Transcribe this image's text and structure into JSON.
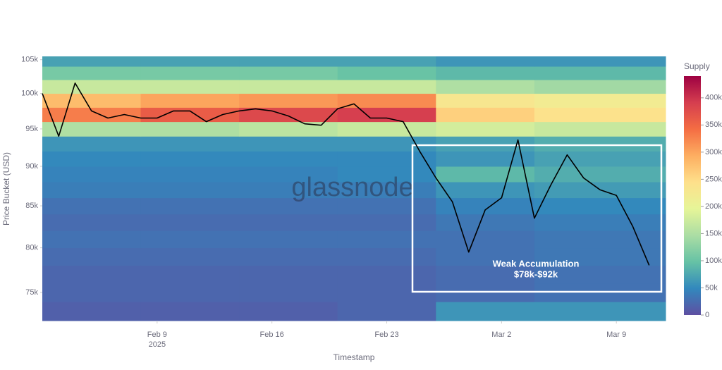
{
  "chart_data": {
    "type": "heatmap",
    "x_label": "Timestamp",
    "y_label": "Price Bucket (USD)",
    "watermark": "glassnode",
    "annotation": [
      "Weak Accumulation",
      "$78k-$92k"
    ],
    "xlim": [
      "2025-02-02",
      "2025-03-12"
    ],
    "xticks": [
      {
        "value": "2025-02-09",
        "label": "Feb 9"
      },
      {
        "value": "2025-02-16",
        "label": "Feb 16"
      },
      {
        "value": "2025-02-23",
        "label": "Feb 23"
      },
      {
        "value": "2025-03-02",
        "label": "Mar 2"
      },
      {
        "value": "2025-03-09",
        "label": "Mar 9"
      }
    ],
    "x_year_label": "2025",
    "ylim": [
      72000,
      105500
    ],
    "log_y": true,
    "yticks": [
      {
        "value": 75000,
        "label": "75k"
      },
      {
        "value": 80000,
        "label": "80k"
      },
      {
        "value": 85000,
        "label": "85k"
      },
      {
        "value": 90000,
        "label": "90k"
      },
      {
        "value": 95000,
        "label": "95k"
      },
      {
        "value": 100000,
        "label": "100k"
      },
      {
        "value": 105000,
        "label": "105k"
      }
    ],
    "heatmap": {
      "x": [
        "2025-02-02",
        "2025-02-08",
        "2025-02-14",
        "2025-02-20",
        "2025-02-26",
        "2025-03-04",
        "2025-03-12"
      ],
      "y": [
        72000,
        74000,
        76000,
        78000,
        80000,
        82000,
        84000,
        86000,
        88000,
        90000,
        92000,
        94000,
        96000,
        98000,
        100000,
        102000,
        104000,
        106000
      ],
      "z": [
        [
          15000,
          15000,
          15000,
          20000,
          60000,
          60000
        ],
        [
          20000,
          20000,
          20000,
          20000,
          25000,
          30000
        ],
        [
          20000,
          20000,
          20000,
          20000,
          25000,
          30000
        ],
        [
          25000,
          25000,
          25000,
          25000,
          30000,
          35000
        ],
        [
          30000,
          30000,
          30000,
          30000,
          30000,
          35000
        ],
        [
          25000,
          25000,
          25000,
          25000,
          35000,
          40000
        ],
        [
          30000,
          30000,
          30000,
          30000,
          45000,
          50000
        ],
        [
          40000,
          40000,
          40000,
          40000,
          60000,
          65000
        ],
        [
          45000,
          45000,
          45000,
          50000,
          90000,
          80000
        ],
        [
          50000,
          50000,
          50000,
          50000,
          60000,
          70000
        ],
        [
          60000,
          60000,
          60000,
          60000,
          70000,
          80000
        ],
        [
          150000,
          150000,
          160000,
          170000,
          180000,
          170000
        ],
        [
          330000,
          360000,
          380000,
          390000,
          260000,
          240000
        ],
        [
          280000,
          300000,
          310000,
          320000,
          230000,
          220000
        ],
        [
          170000,
          170000,
          170000,
          170000,
          150000,
          140000
        ],
        [
          110000,
          110000,
          110000,
          100000,
          90000,
          90000
        ],
        [
          70000,
          70000,
          70000,
          70000,
          60000,
          60000
        ]
      ],
      "colorscale": [
        "#5e4fa2",
        "#3288bd",
        "#66c2a5",
        "#abdda4",
        "#e6f598",
        "#fee08b",
        "#fdae61",
        "#f46d43",
        "#d53e4f",
        "#9e0142"
      ]
    },
    "colorbar": {
      "title": "Supply",
      "lim": [
        0,
        440000
      ],
      "ticks": [
        0,
        {
          "value": 50000,
          "label": "50k"
        },
        {
          "value": 100000,
          "label": "100k"
        },
        {
          "value": 150000,
          "label": "150k"
        },
        {
          "value": 200000,
          "label": "200k"
        },
        {
          "value": 250000,
          "label": "250k"
        },
        {
          "value": 300000,
          "label": "300k"
        },
        {
          "value": 350000,
          "label": "350k"
        },
        {
          "value": 400000,
          "label": "400k"
        }
      ]
    },
    "line": {
      "color": "#000000",
      "x": [
        "2025-02-02",
        "2025-02-03",
        "2025-02-04",
        "2025-02-05",
        "2025-02-06",
        "2025-02-07",
        "2025-02-08",
        "2025-02-09",
        "2025-02-10",
        "2025-02-11",
        "2025-02-12",
        "2025-02-13",
        "2025-02-14",
        "2025-02-15",
        "2025-02-16",
        "2025-02-17",
        "2025-02-18",
        "2025-02-19",
        "2025-02-20",
        "2025-02-21",
        "2025-02-22",
        "2025-02-23",
        "2025-02-24",
        "2025-02-25",
        "2025-02-26",
        "2025-02-27",
        "2025-02-28",
        "2025-03-01",
        "2025-03-02",
        "2025-03-03",
        "2025-03-04",
        "2025-03-05",
        "2025-03-06",
        "2025-03-07",
        "2025-03-08",
        "2025-03-09",
        "2025-03-10",
        "2025-03-11"
      ],
      "values": [
        100000,
        94000,
        101500,
        97500,
        96500,
        97000,
        96500,
        96500,
        97500,
        97500,
        96000,
        97000,
        97500,
        97800,
        97500,
        96800,
        95700,
        95500,
        97800,
        98500,
        96500,
        96500,
        96000,
        92000,
        88500,
        85500,
        79500,
        84500,
        86000,
        93500,
        83500,
        87600,
        91500,
        88500,
        87000,
        86300,
        82500,
        78000
      ]
    }
  }
}
